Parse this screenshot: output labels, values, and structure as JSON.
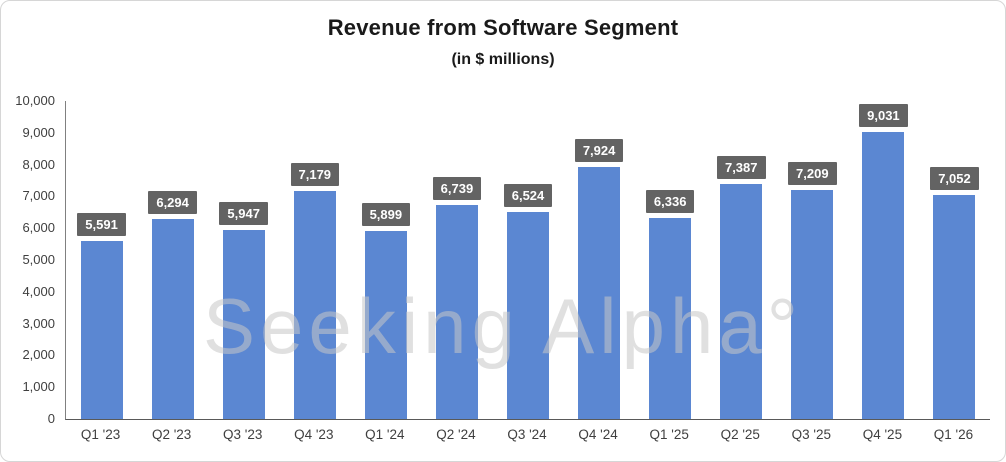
{
  "watermark": "Seeking Alpha°",
  "chart_data": {
    "type": "bar",
    "title": "Revenue from Software Segment",
    "subtitle": "(in $ millions)",
    "categories": [
      "Q1 '23",
      "Q2 '23",
      "Q3 '23",
      "Q4 '23",
      "Q1 '24",
      "Q2 '24",
      "Q3 '24",
      "Q4 '24",
      "Q1 '25",
      "Q2 '25",
      "Q3 '25",
      "Q4 '25",
      "Q1 '26"
    ],
    "values": [
      5591,
      6294,
      5947,
      7179,
      5899,
      6739,
      6524,
      7924,
      6336,
      7387,
      7209,
      9031,
      7052
    ],
    "xlabel": "",
    "ylabel": "",
    "ylim": [
      0,
      10000
    ],
    "ytick_step": 1000,
    "grid": false,
    "legend": "none",
    "bar_color": "#5B87D2",
    "label_bg": "#636363",
    "label_text_color": "#FFFFFF"
  }
}
